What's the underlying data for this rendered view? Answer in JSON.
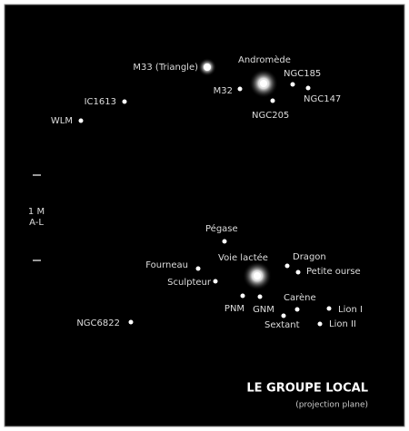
{
  "title": "LE GROUPE LOCAL",
  "subtitle": "(projection plane)",
  "scale": {
    "top": "1 M",
    "bottom": "A-L"
  },
  "objects": [
    {
      "label": "M33 (Triangle)",
      "kind": "glow"
    },
    {
      "label": "Andromède",
      "kind": "big"
    },
    {
      "label": "NGC185",
      "kind": "dot"
    },
    {
      "label": "NGC147",
      "kind": "dot"
    },
    {
      "label": "M32",
      "kind": "dot"
    },
    {
      "label": "NGC205",
      "kind": "dot"
    },
    {
      "label": "IC1613",
      "kind": "dot"
    },
    {
      "label": "WLM",
      "kind": "dot"
    },
    {
      "label": "Pégase",
      "kind": "dot"
    },
    {
      "label": "Voie lactée",
      "kind": "big"
    },
    {
      "label": "Dragon",
      "kind": "dot"
    },
    {
      "label": "Petite ourse",
      "kind": "dot"
    },
    {
      "label": "Fourneau",
      "kind": "dot"
    },
    {
      "label": "Sculpteur",
      "kind": "dot"
    },
    {
      "label": "PNM",
      "kind": "dot"
    },
    {
      "label": "GNM",
      "kind": "dot"
    },
    {
      "label": "Carène",
      "kind": "dot"
    },
    {
      "label": "Sextant",
      "kind": "dot"
    },
    {
      "label": "Lion I",
      "kind": "dot"
    },
    {
      "label": "Lion II",
      "kind": "dot"
    },
    {
      "label": "NGC6822",
      "kind": "dot"
    }
  ]
}
